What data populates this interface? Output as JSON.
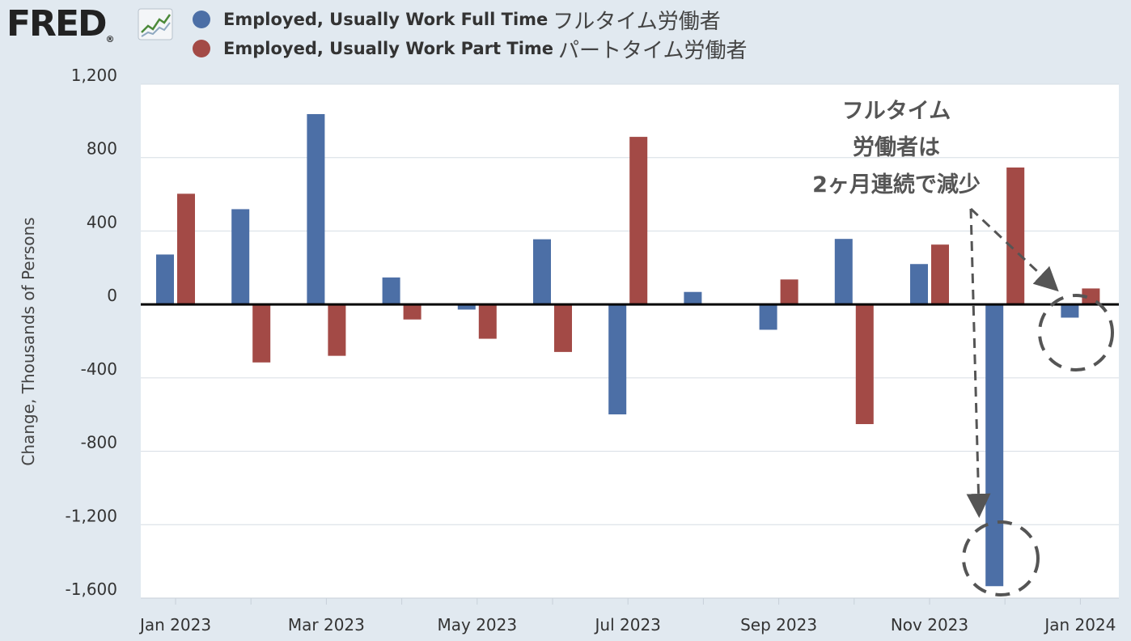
{
  "logo": {
    "text": "FRED",
    "mark": "®"
  },
  "legend": [
    {
      "label": "Employed, Usually Work Full Time",
      "label_jp": "フルタイム労働者",
      "color": "#4c6fa6"
    },
    {
      "label": "Employed, Usually Work Part Time",
      "label_jp": "パートタイム労働者",
      "color": "#a34a46"
    }
  ],
  "annotation": {
    "lines": [
      "フルタイム",
      "労働者は",
      "2ヶ月連続で減少"
    ]
  },
  "chart_data": {
    "type": "bar",
    "categories": [
      "Jan 2023",
      "Feb 2023",
      "Mar 2023",
      "Apr 2023",
      "May 2023",
      "Jun 2023",
      "Jul 2023",
      "Aug 2023",
      "Sep 2023",
      "Oct 2023",
      "Nov 2023",
      "Dec 2023",
      "Jan 2024"
    ],
    "series": [
      {
        "name": "Employed, Usually Work Full Time",
        "color": "#4c6fa6",
        "values": [
          272,
          519,
          1037,
          147,
          -28,
          355,
          -599,
          68,
          -138,
          357,
          220,
          -1535,
          -72
        ]
      },
      {
        "name": "Employed, Usually Work Part Time",
        "color": "#a34a46",
        "values": [
          603,
          -316,
          -280,
          -82,
          -187,
          -259,
          913,
          0,
          136,
          -652,
          326,
          746,
          87
        ]
      }
    ],
    "ylabel": "Change, Thousands of Persons",
    "ylim": [
      -1600,
      1200
    ],
    "yticks": [
      1200,
      800,
      400,
      0,
      -400,
      -800,
      -1200,
      -1600
    ],
    "ytick_labels": [
      "1,200",
      "800",
      "400",
      "0",
      "-400",
      "-800",
      "-1,200",
      "-1,600"
    ],
    "xtick_labels": [
      {
        "index": 0,
        "label": "Jan 2023"
      },
      {
        "index": 2,
        "label": "Mar 2023"
      },
      {
        "index": 4,
        "label": "May 2023"
      },
      {
        "index": 6,
        "label": "Jul 2023"
      },
      {
        "index": 8,
        "label": "Sep 2023"
      },
      {
        "index": 10,
        "label": "Nov 2023"
      },
      {
        "index": 12,
        "label": "Jan 2024"
      }
    ],
    "grid": true,
    "legend_position": "top-left",
    "plot_background": "#ffffff",
    "grid_color": "#d6dde4",
    "zero_line_color": "#000000"
  }
}
